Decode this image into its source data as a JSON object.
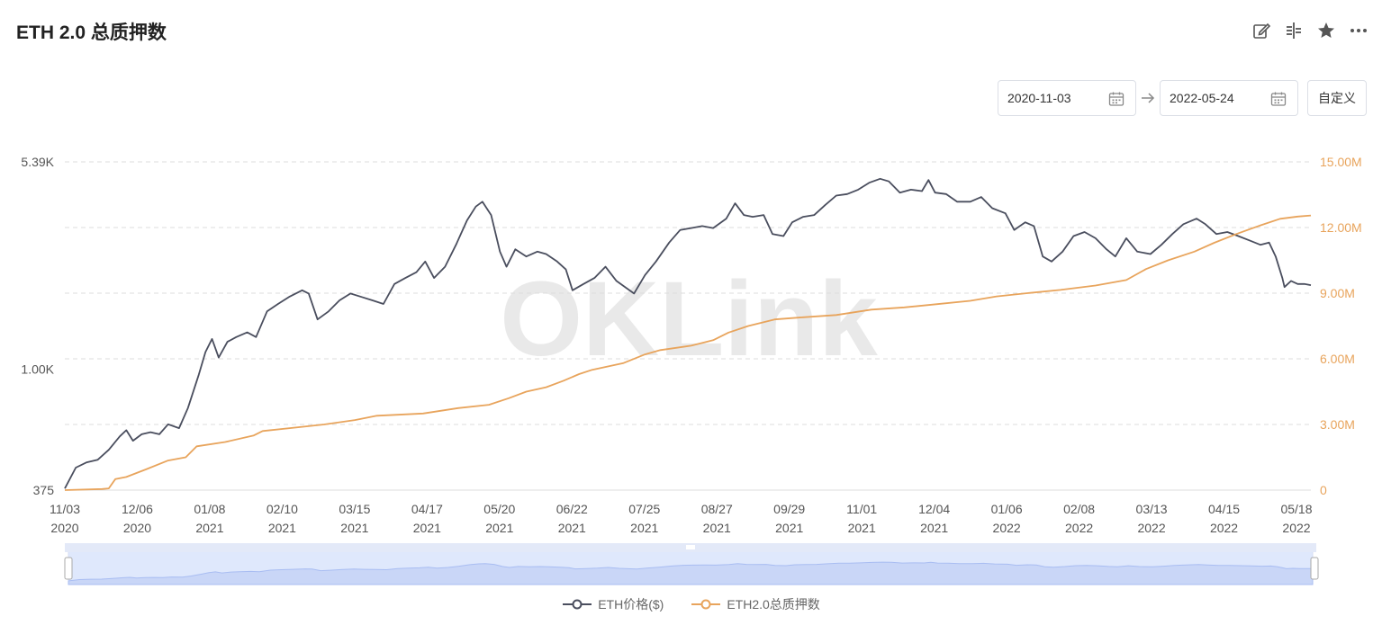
{
  "header": {
    "title": "ETH 2.0 总质押数"
  },
  "toolbar": {
    "icons": [
      "edit-icon",
      "compare-icon",
      "star-icon",
      "more-icon"
    ]
  },
  "date_range": {
    "start": "2020-11-03",
    "end": "2022-05-24",
    "custom_label": "自定义"
  },
  "watermark": "OKLink",
  "colors": {
    "price": "#4a4e5e",
    "staked": "#e8a45c",
    "grid": "#dddddd",
    "left_axis_text": "#555555",
    "right_axis_text": "#e8a45c",
    "slider_fill": "#dfe8fc",
    "slider_line": "#a9bdf2"
  },
  "legend": {
    "price_label": "ETH价格($)",
    "staked_label": "ETH2.0总质押数"
  },
  "chart_data": {
    "type": "line",
    "x_ticks": [
      {
        "top": "11/03",
        "bottom": "2020"
      },
      {
        "top": "12/06",
        "bottom": "2020"
      },
      {
        "top": "01/08",
        "bottom": "2021"
      },
      {
        "top": "02/10",
        "bottom": "2021"
      },
      {
        "top": "03/15",
        "bottom": "2021"
      },
      {
        "top": "04/17",
        "bottom": "2021"
      },
      {
        "top": "05/20",
        "bottom": "2021"
      },
      {
        "top": "06/22",
        "bottom": "2021"
      },
      {
        "top": "07/25",
        "bottom": "2021"
      },
      {
        "top": "08/27",
        "bottom": "2021"
      },
      {
        "top": "09/29",
        "bottom": "2021"
      },
      {
        "top": "11/01",
        "bottom": "2021"
      },
      {
        "top": "12/04",
        "bottom": "2021"
      },
      {
        "top": "01/06",
        "bottom": "2022"
      },
      {
        "top": "02/08",
        "bottom": "2022"
      },
      {
        "top": "03/13",
        "bottom": "2022"
      },
      {
        "top": "04/15",
        "bottom": "2022"
      },
      {
        "top": "05/18",
        "bottom": "2022"
      }
    ],
    "left_axis": {
      "scale": "log",
      "min": 375,
      "max": 5390,
      "tick_labels": [
        "5.39K",
        "1.00K",
        "375"
      ],
      "tick_values": [
        5390,
        1000,
        375
      ]
    },
    "right_axis": {
      "min": 0,
      "max": 15000000,
      "tick_labels": [
        "15.00M",
        "12.00M",
        "9.00M",
        "6.00M",
        "3.00M",
        "0"
      ],
      "tick_values": [
        15000000,
        12000000,
        9000000,
        6000000,
        3000000,
        0
      ]
    },
    "x_start": "2020-11-03",
    "x_end": "2022-05-24",
    "series": [
      {
        "name": "ETH价格($)",
        "axis": "left",
        "points": [
          [
            "2020-11-03",
            380
          ],
          [
            "2020-11-08",
            450
          ],
          [
            "2020-11-13",
            470
          ],
          [
            "2020-11-18",
            480
          ],
          [
            "2020-11-23",
            520
          ],
          [
            "2020-11-28",
            580
          ],
          [
            "2020-12-01",
            610
          ],
          [
            "2020-12-04",
            560
          ],
          [
            "2020-12-08",
            590
          ],
          [
            "2020-12-12",
            600
          ],
          [
            "2020-12-16",
            590
          ],
          [
            "2020-12-20",
            640
          ],
          [
            "2020-12-25",
            620
          ],
          [
            "2020-12-29",
            730
          ],
          [
            "2021-01-03",
            960
          ],
          [
            "2021-01-06",
            1150
          ],
          [
            "2021-01-09",
            1280
          ],
          [
            "2021-01-12",
            1100
          ],
          [
            "2021-01-16",
            1250
          ],
          [
            "2021-01-20",
            1300
          ],
          [
            "2021-01-25",
            1350
          ],
          [
            "2021-01-29",
            1300
          ],
          [
            "2021-02-03",
            1600
          ],
          [
            "2021-02-08",
            1700
          ],
          [
            "2021-02-13",
            1800
          ],
          [
            "2021-02-19",
            1900
          ],
          [
            "2021-02-22",
            1850
          ],
          [
            "2021-02-26",
            1500
          ],
          [
            "2021-03-03",
            1600
          ],
          [
            "2021-03-08",
            1750
          ],
          [
            "2021-03-13",
            1850
          ],
          [
            "2021-03-18",
            1800
          ],
          [
            "2021-03-23",
            1750
          ],
          [
            "2021-03-28",
            1700
          ],
          [
            "2021-04-02",
            2000
          ],
          [
            "2021-04-07",
            2100
          ],
          [
            "2021-04-12",
            2200
          ],
          [
            "2021-04-16",
            2400
          ],
          [
            "2021-04-20",
            2100
          ],
          [
            "2021-04-25",
            2300
          ],
          [
            "2021-04-30",
            2750
          ],
          [
            "2021-05-05",
            3350
          ],
          [
            "2021-05-09",
            3750
          ],
          [
            "2021-05-12",
            3900
          ],
          [
            "2021-05-16",
            3500
          ],
          [
            "2021-05-20",
            2600
          ],
          [
            "2021-05-23",
            2300
          ],
          [
            "2021-05-27",
            2650
          ],
          [
            "2021-06-01",
            2500
          ],
          [
            "2021-06-06",
            2600
          ],
          [
            "2021-06-10",
            2550
          ],
          [
            "2021-06-15",
            2400
          ],
          [
            "2021-06-19",
            2250
          ],
          [
            "2021-06-22",
            1900
          ],
          [
            "2021-06-27",
            2000
          ],
          [
            "2021-07-02",
            2100
          ],
          [
            "2021-07-07",
            2300
          ],
          [
            "2021-07-12",
            2050
          ],
          [
            "2021-07-20",
            1850
          ],
          [
            "2021-07-25",
            2150
          ],
          [
            "2021-07-30",
            2400
          ],
          [
            "2021-08-05",
            2800
          ],
          [
            "2021-08-10",
            3100
          ],
          [
            "2021-08-15",
            3150
          ],
          [
            "2021-08-20",
            3200
          ],
          [
            "2021-08-25",
            3150
          ],
          [
            "2021-08-31",
            3400
          ],
          [
            "2021-09-04",
            3850
          ],
          [
            "2021-09-08",
            3500
          ],
          [
            "2021-09-12",
            3450
          ],
          [
            "2021-09-17",
            3500
          ],
          [
            "2021-09-21",
            3000
          ],
          [
            "2021-09-26",
            2950
          ],
          [
            "2021-09-30",
            3300
          ],
          [
            "2021-10-05",
            3450
          ],
          [
            "2021-10-10",
            3500
          ],
          [
            "2021-10-15",
            3800
          ],
          [
            "2021-10-20",
            4100
          ],
          [
            "2021-10-25",
            4150
          ],
          [
            "2021-10-30",
            4300
          ],
          [
            "2021-11-04",
            4550
          ],
          [
            "2021-11-09",
            4700
          ],
          [
            "2021-11-13",
            4600
          ],
          [
            "2021-11-18",
            4200
          ],
          [
            "2021-11-23",
            4300
          ],
          [
            "2021-11-28",
            4250
          ],
          [
            "2021-12-01",
            4650
          ],
          [
            "2021-12-04",
            4200
          ],
          [
            "2021-12-09",
            4150
          ],
          [
            "2021-12-14",
            3900
          ],
          [
            "2021-12-20",
            3900
          ],
          [
            "2021-12-25",
            4050
          ],
          [
            "2021-12-30",
            3700
          ],
          [
            "2022-01-05",
            3550
          ],
          [
            "2022-01-09",
            3100
          ],
          [
            "2022-01-14",
            3300
          ],
          [
            "2022-01-18",
            3200
          ],
          [
            "2022-01-22",
            2500
          ],
          [
            "2022-01-26",
            2400
          ],
          [
            "2022-01-31",
            2600
          ],
          [
            "2022-02-05",
            2950
          ],
          [
            "2022-02-10",
            3050
          ],
          [
            "2022-02-15",
            2900
          ],
          [
            "2022-02-20",
            2650
          ],
          [
            "2022-02-24",
            2500
          ],
          [
            "2022-03-01",
            2900
          ],
          [
            "2022-03-06",
            2600
          ],
          [
            "2022-03-12",
            2550
          ],
          [
            "2022-03-17",
            2750
          ],
          [
            "2022-03-22",
            3000
          ],
          [
            "2022-03-27",
            3250
          ],
          [
            "2022-04-02",
            3400
          ],
          [
            "2022-04-06",
            3250
          ],
          [
            "2022-04-11",
            3000
          ],
          [
            "2022-04-16",
            3050
          ],
          [
            "2022-04-21",
            2950
          ],
          [
            "2022-04-26",
            2850
          ],
          [
            "2022-05-01",
            2750
          ],
          [
            "2022-05-05",
            2800
          ],
          [
            "2022-05-08",
            2500
          ],
          [
            "2022-05-11",
            2100
          ],
          [
            "2022-05-12",
            1950
          ],
          [
            "2022-05-15",
            2050
          ],
          [
            "2022-05-18",
            2000
          ],
          [
            "2022-05-21",
            2000
          ],
          [
            "2022-05-24",
            1980
          ]
        ]
      },
      {
        "name": "ETH2.0总质押数",
        "axis": "right",
        "points": [
          [
            "2020-11-03",
            0
          ],
          [
            "2020-11-20",
            50000
          ],
          [
            "2020-11-23",
            80000
          ],
          [
            "2020-11-26",
            500000
          ],
          [
            "2020-12-01",
            600000
          ],
          [
            "2020-12-10",
            950000
          ],
          [
            "2020-12-20",
            1350000
          ],
          [
            "2020-12-28",
            1500000
          ],
          [
            "2021-01-02",
            2000000
          ],
          [
            "2021-01-15",
            2200000
          ],
          [
            "2021-01-28",
            2500000
          ],
          [
            "2021-02-01",
            2700000
          ],
          [
            "2021-02-20",
            2900000
          ],
          [
            "2021-03-01",
            3000000
          ],
          [
            "2021-03-15",
            3200000
          ],
          [
            "2021-03-25",
            3400000
          ],
          [
            "2021-04-15",
            3500000
          ],
          [
            "2021-05-01",
            3750000
          ],
          [
            "2021-05-15",
            3900000
          ],
          [
            "2021-05-24",
            4200000
          ],
          [
            "2021-06-01",
            4500000
          ],
          [
            "2021-06-10",
            4700000
          ],
          [
            "2021-06-18",
            5000000
          ],
          [
            "2021-06-25",
            5300000
          ],
          [
            "2021-07-01",
            5500000
          ],
          [
            "2021-07-15",
            5800000
          ],
          [
            "2021-07-25",
            6200000
          ],
          [
            "2021-08-01",
            6400000
          ],
          [
            "2021-08-15",
            6600000
          ],
          [
            "2021-08-25",
            6850000
          ],
          [
            "2021-09-01",
            7200000
          ],
          [
            "2021-09-10",
            7500000
          ],
          [
            "2021-09-22",
            7800000
          ],
          [
            "2021-10-05",
            7900000
          ],
          [
            "2021-10-20",
            8000000
          ],
          [
            "2021-11-05",
            8250000
          ],
          [
            "2021-11-20",
            8350000
          ],
          [
            "2021-12-05",
            8500000
          ],
          [
            "2021-12-20",
            8650000
          ],
          [
            "2022-01-01",
            8850000
          ],
          [
            "2022-01-15",
            9000000
          ],
          [
            "2022-01-30",
            9150000
          ],
          [
            "2022-02-15",
            9350000
          ],
          [
            "2022-03-01",
            9600000
          ],
          [
            "2022-03-10",
            10100000
          ],
          [
            "2022-03-20",
            10500000
          ],
          [
            "2022-04-01",
            10900000
          ],
          [
            "2022-04-10",
            11300000
          ],
          [
            "2022-04-20",
            11700000
          ],
          [
            "2022-05-01",
            12100000
          ],
          [
            "2022-05-10",
            12400000
          ],
          [
            "2022-05-18",
            12500000
          ],
          [
            "2022-05-24",
            12550000
          ]
        ]
      }
    ],
    "grid": true,
    "legend_position": "bottom-center"
  }
}
